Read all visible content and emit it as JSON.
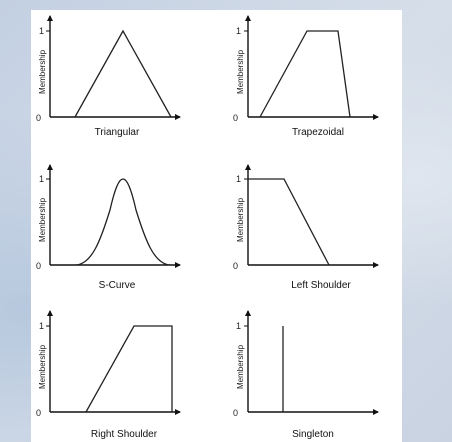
{
  "diagram": {
    "y_axis_label": "Membership",
    "tick_one": "1",
    "tick_zero": "0",
    "panels": [
      {
        "caption": "Triangular"
      },
      {
        "caption": "Trapezoidal"
      },
      {
        "caption": "S-Curve"
      },
      {
        "caption": "Left Shoulder"
      },
      {
        "caption": "Right Shoulder"
      },
      {
        "caption": "Singleton"
      }
    ]
  }
}
